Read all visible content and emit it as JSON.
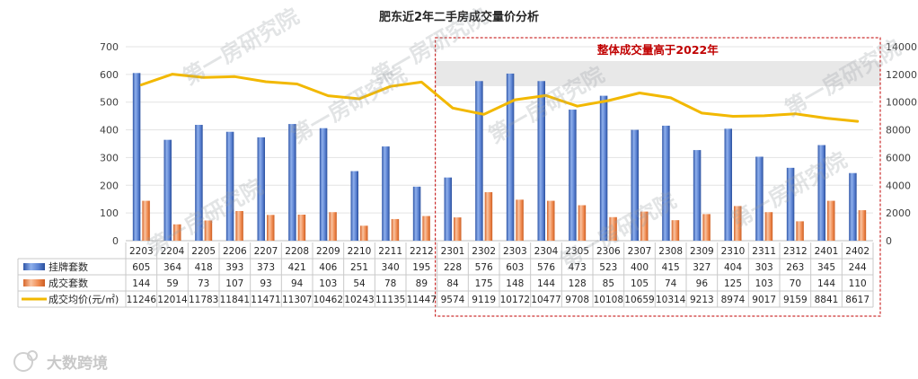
{
  "chart_data": {
    "type": "bar",
    "title": "肥东近2年二手房成交量价分析",
    "categories": [
      "2203",
      "2204",
      "2205",
      "2206",
      "2207",
      "2208",
      "2209",
      "2210",
      "2211",
      "2212",
      "2301",
      "2302",
      "2303",
      "2304",
      "2305",
      "2306",
      "2307",
      "2308",
      "2309",
      "2310",
      "2311",
      "2312",
      "2401",
      "2402"
    ],
    "series": [
      {
        "name": "挂牌套数",
        "type": "bar",
        "axis": "left",
        "color": "#4472c4",
        "values": [
          605,
          364,
          418,
          393,
          373,
          421,
          406,
          251,
          340,
          195,
          228,
          576,
          603,
          576,
          473,
          523,
          400,
          415,
          327,
          404,
          303,
          263,
          345,
          244
        ]
      },
      {
        "name": "成交套数",
        "type": "bar",
        "axis": "left",
        "color": "#ed7d31",
        "values": [
          144,
          59,
          73,
          107,
          93,
          94,
          103,
          54,
          78,
          89,
          84,
          175,
          148,
          144,
          128,
          85,
          105,
          74,
          96,
          125,
          103,
          70,
          144,
          110
        ]
      },
      {
        "name": "成交均价(元/㎡)",
        "type": "line",
        "axis": "right",
        "color": "#f2b800",
        "values": [
          11246,
          12014,
          11783,
          11841,
          11471,
          11307,
          10462,
          10243,
          11135,
          11447,
          9574,
          9119,
          10172,
          10477,
          9708,
          10108,
          10659,
          10314,
          9213,
          8974,
          9017,
          9159,
          8841,
          8617
        ]
      }
    ],
    "ylim_left": [
      0,
      700
    ],
    "yticks_left": [
      0,
      100,
      200,
      300,
      400,
      500,
      600,
      700
    ],
    "ylim_right": [
      0,
      14000
    ],
    "yticks_right": [
      0,
      2000,
      4000,
      6000,
      8000,
      10000,
      12000,
      14000
    ],
    "grid": true,
    "legend": "data-table-left",
    "highlight": {
      "label": "整体成交量高于2022年",
      "from_category": "2301",
      "to_category": "2402",
      "color": "#c00000"
    }
  },
  "watermarks": [
    "第一房研究院",
    "第一房研究院",
    "第一房研究院",
    "第一房研究院",
    "第一房研究院",
    "第一房研究院",
    "第一房研究院",
    "第一房研究院"
  ],
  "logo": {
    "text": "大数跨境"
  }
}
